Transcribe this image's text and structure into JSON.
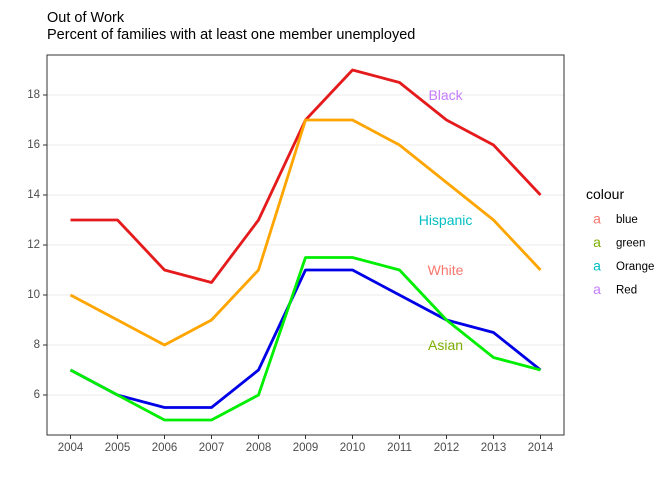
{
  "chart_data": {
    "type": "line",
    "title": "Out of Work",
    "subtitle": "Percent of families with at least one member unemployed",
    "xlabel": "",
    "ylabel": "",
    "x": [
      2004,
      2005,
      2006,
      2007,
      2008,
      2009,
      2010,
      2011,
      2012,
      2013,
      2014
    ],
    "xlim": [
      2003.5,
      2014.5
    ],
    "ylim": [
      4.4,
      19.6
    ],
    "x_ticks": [
      "2004",
      "2005",
      "2006",
      "2007",
      "2008",
      "2009",
      "2010",
      "2011",
      "2012",
      "2013",
      "2014"
    ],
    "y_ticks": [
      "6",
      "8",
      "10",
      "12",
      "14",
      "16",
      "18"
    ],
    "grid": true,
    "series": [
      {
        "color": "#e41a1c",
        "values": [
          13,
          13,
          11,
          10.5,
          13,
          17,
          19,
          18.5,
          17,
          16,
          14
        ]
      },
      {
        "color": "#ffa500",
        "values": [
          10,
          9,
          8,
          9,
          11,
          17,
          17,
          16,
          14.5,
          13,
          11
        ]
      },
      {
        "color": "#0000e6",
        "values": [
          7,
          6,
          5.5,
          5.5,
          7,
          11,
          11,
          10,
          9,
          8.5,
          7
        ]
      },
      {
        "color": "#00ee00",
        "values": [
          7,
          6,
          5,
          5,
          6,
          11.5,
          11.5,
          11,
          9,
          7.5,
          7
        ]
      }
    ],
    "annotations": [
      {
        "text": "Black",
        "x": 2011.98,
        "y": 17.95,
        "color": "#c77cff"
      },
      {
        "text": "Hispanic",
        "x": 2011.98,
        "y": 12.95,
        "color": "#00bfc4"
      },
      {
        "text": "White",
        "x": 2011.98,
        "y": 10.95,
        "color": "#f8766d"
      },
      {
        "text": "Asian",
        "x": 2011.98,
        "y": 7.95,
        "color": "#7cae00"
      }
    ],
    "legend": {
      "title": "colour",
      "placement": "right",
      "items": [
        {
          "key": "a",
          "label": "blue",
          "color": "#f8766d"
        },
        {
          "key": "a",
          "label": "green",
          "color": "#7cae00"
        },
        {
          "key": "a",
          "label": "Orange",
          "color": "#00bfc4"
        },
        {
          "key": "a",
          "label": "Red",
          "color": "#c77cff"
        }
      ]
    }
  }
}
